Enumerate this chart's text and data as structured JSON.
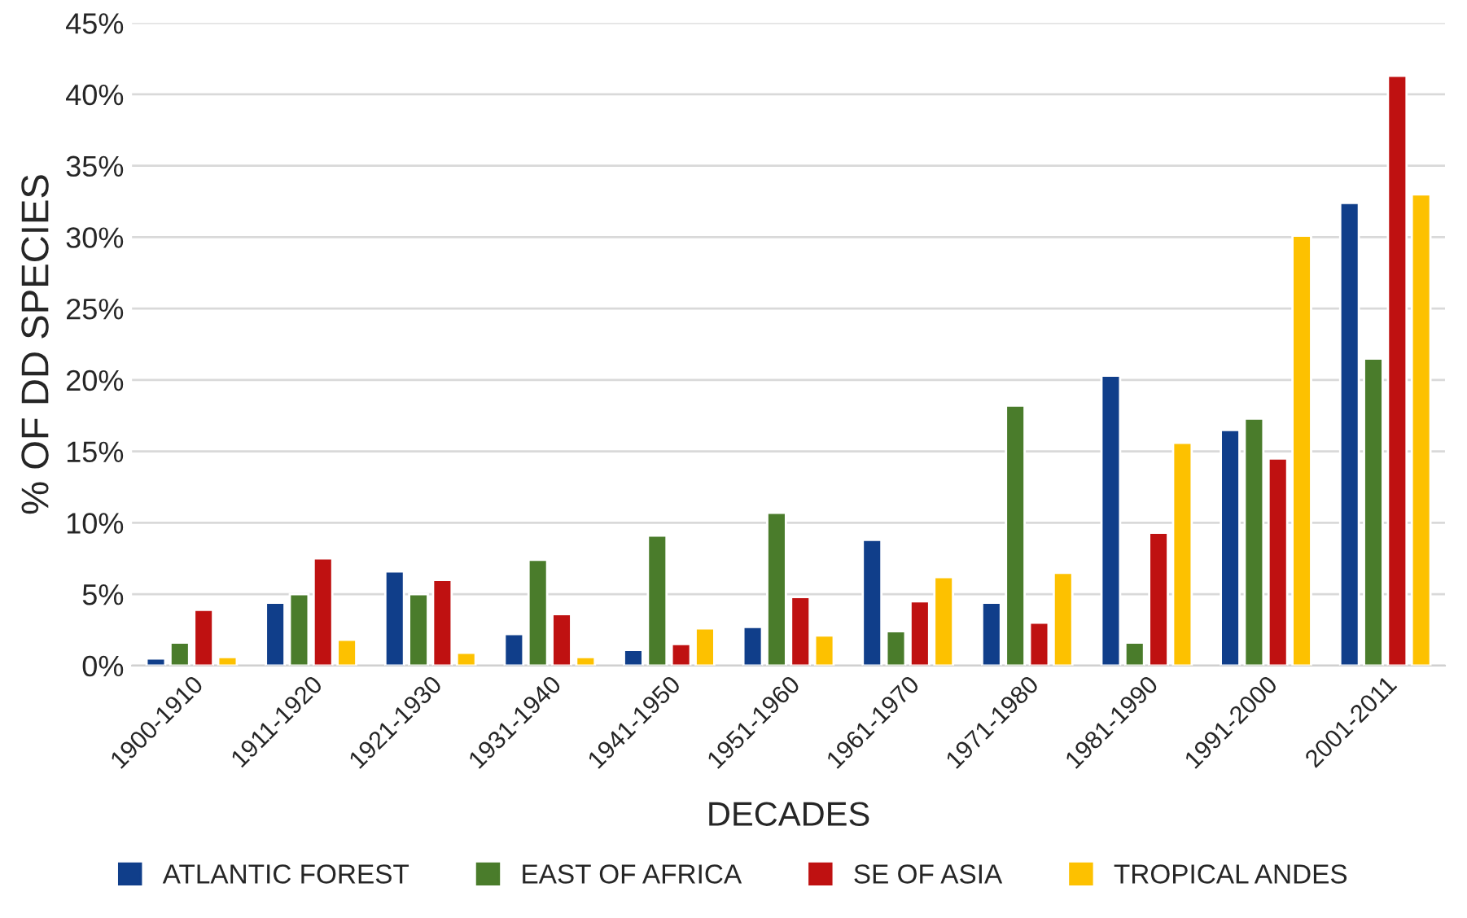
{
  "chart_data": {
    "type": "bar",
    "xlabel": "DECADES",
    "ylabel": "% OF DD SPECIES",
    "categories": [
      "1900-1910",
      "1911-1920",
      "1921-1930",
      "1931-1940",
      "1941-1950",
      "1951-1960",
      "1961-1970",
      "1971-1980",
      "1981-1990",
      "1991-2000",
      "2001-2011"
    ],
    "series": [
      {
        "name": "ATLANTIC FOREST",
        "color": "#103e8a",
        "values": [
          0.5,
          4.4,
          6.6,
          2.2,
          1.1,
          2.7,
          8.8,
          4.4,
          20.3,
          16.5,
          32.4
        ]
      },
      {
        "name": "EAST OF AFRICA",
        "color": "#4a7c2b",
        "values": [
          1.6,
          5.0,
          5.0,
          7.4,
          9.1,
          10.7,
          2.4,
          18.2,
          1.6,
          17.3,
          21.5
        ]
      },
      {
        "name": "SE OF ASIA",
        "color": "#bf1111",
        "values": [
          3.9,
          7.5,
          6.0,
          3.6,
          1.5,
          4.8,
          4.5,
          3.0,
          9.3,
          14.5,
          41.3
        ]
      },
      {
        "name": "TROPICAL ANDES",
        "color": "#fdc100",
        "values": [
          0.6,
          1.8,
          0.9,
          0.6,
          2.6,
          2.1,
          6.2,
          6.5,
          15.6,
          30.1,
          33.0
        ]
      }
    ],
    "ylim": [
      0,
      45
    ],
    "yticks": [
      {
        "value": 0,
        "label": "0%"
      },
      {
        "value": 5,
        "label": "5%"
      },
      {
        "value": 10,
        "label": "10%"
      },
      {
        "value": 15,
        "label": "15%"
      },
      {
        "value": 20,
        "label": "20%"
      },
      {
        "value": 25,
        "label": "25%"
      },
      {
        "value": 30,
        "label": "30%"
      },
      {
        "value": 35,
        "label": "35%"
      },
      {
        "value": 40,
        "label": "40%"
      },
      {
        "value": 45,
        "label": "45%"
      }
    ],
    "grid": "y",
    "legend": "bottom"
  }
}
